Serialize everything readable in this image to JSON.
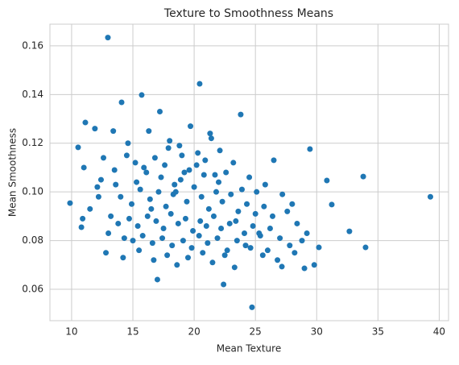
{
  "chart_data": {
    "type": "scatter",
    "title": "Texture to Smoothness Means",
    "x_label": "Mean Texture",
    "y_label": "Mean Smoothness",
    "color": "#1f77b4",
    "grid": true,
    "xlim": [
      8.23,
      40.76
    ],
    "ylim": [
      0.0471,
      0.1689
    ],
    "xticks": [
      10,
      15,
      20,
      25,
      30,
      35,
      40
    ],
    "yticks": [
      0.06,
      0.08,
      {
        "value": 0.1,
        "label": "0.10"
      },
      0.12,
      0.14,
      0.16
    ],
    "x": [
      12.96,
      9.87,
      39.28,
      33.8,
      33.99,
      32.67,
      24.72,
      20.45,
      15.72,
      14.08,
      11.12,
      10.53,
      23.8,
      29.45,
      30.83,
      31.23,
      30.18,
      29.0,
      27.16,
      22.4,
      17.0,
      10.8,
      11.9,
      13.4,
      14.5,
      15.2,
      16.1,
      16.8,
      17.3,
      17.9,
      18.4,
      19.0,
      19.6,
      20.2,
      20.8,
      21.4,
      22.0,
      22.6,
      23.2,
      23.9,
      24.5,
      25.1,
      25.8,
      26.5,
      27.2,
      28.0,
      14.0,
      14.9,
      15.6,
      16.4,
      17.1,
      17.7,
      18.3,
      18.9,
      19.4,
      20.0,
      20.6,
      21.2,
      21.8,
      22.3,
      23.0,
      23.6,
      24.3,
      25.0,
      25.7,
      26.4,
      27.6,
      28.4,
      13.2,
      13.8,
      14.7,
      15.4,
      16.2,
      16.9,
      17.5,
      18.1,
      18.7,
      19.3,
      19.9,
      20.5,
      21.0,
      21.6,
      22.2,
      22.9,
      23.4,
      24.1,
      24.8,
      25.4,
      26.2,
      27.0,
      28.8,
      12.4,
      13.0,
      13.6,
      14.3,
      15.0,
      15.8,
      16.6,
      17.4,
      18.2,
      19.1,
      19.8,
      20.4,
      21.1,
      21.9,
      22.7,
      23.5,
      24.2,
      25.3,
      26.0,
      27.8,
      29.2,
      11.5,
      12.1,
      12.8,
      14.2,
      15.5,
      16.7,
      17.8,
      18.6,
      19.5,
      20.7,
      21.5,
      22.5,
      23.3,
      24.6,
      25.6,
      26.8,
      28.2,
      29.8,
      16.3,
      17.2,
      18.0,
      18.8,
      19.7,
      20.3,
      21.3,
      22.1,
      17.6,
      19.2,
      20.9,
      21.7,
      15.9,
      18.5,
      13.5,
      12.6,
      11.0,
      12.2,
      10.9,
      14.6,
      15.3,
      16.5
    ],
    "values": [
      0.1634,
      0.0954,
      0.098,
      0.1063,
      0.0772,
      0.0838,
      0.0526,
      0.1444,
      0.1398,
      0.1368,
      0.1285,
      0.1183,
      0.1318,
      0.1176,
      0.1047,
      0.0948,
      0.0772,
      0.0686,
      0.0693,
      0.062,
      0.064,
      0.0855,
      0.126,
      0.125,
      0.115,
      0.112,
      0.108,
      0.114,
      0.106,
      0.118,
      0.103,
      0.115,
      0.109,
      0.111,
      0.107,
      0.122,
      0.104,
      0.108,
      0.112,
      0.101,
      0.106,
      0.1,
      0.103,
      0.113,
      0.099,
      0.095,
      0.098,
      0.095,
      0.101,
      0.097,
      0.1,
      0.094,
      0.099,
      0.105,
      0.096,
      0.102,
      0.098,
      0.093,
      0.1,
      0.096,
      0.099,
      0.092,
      0.095,
      0.091,
      0.094,
      0.09,
      0.092,
      0.087,
      0.09,
      0.087,
      0.089,
      0.086,
      0.09,
      0.088,
      0.085,
      0.091,
      0.087,
      0.089,
      0.084,
      0.088,
      0.086,
      0.09,
      0.085,
      0.087,
      0.088,
      0.083,
      0.086,
      0.082,
      0.085,
      0.081,
      0.08,
      0.105,
      0.083,
      0.103,
      0.081,
      0.08,
      0.082,
      0.079,
      0.081,
      0.078,
      0.08,
      0.077,
      0.082,
      0.079,
      0.081,
      0.076,
      0.08,
      0.078,
      0.083,
      0.076,
      0.078,
      0.083,
      0.093,
      0.102,
      0.075,
      0.073,
      0.076,
      0.072,
      0.074,
      0.07,
      0.073,
      0.075,
      0.071,
      0.074,
      0.069,
      0.077,
      0.074,
      0.072,
      0.075,
      0.07,
      0.125,
      0.133,
      0.121,
      0.119,
      0.127,
      0.116,
      0.124,
      0.117,
      0.111,
      0.108,
      0.113,
      0.107,
      0.11,
      0.1,
      0.109,
      0.114,
      0.11,
      0.098,
      0.089,
      0.12,
      0.104,
      0.093
    ]
  }
}
